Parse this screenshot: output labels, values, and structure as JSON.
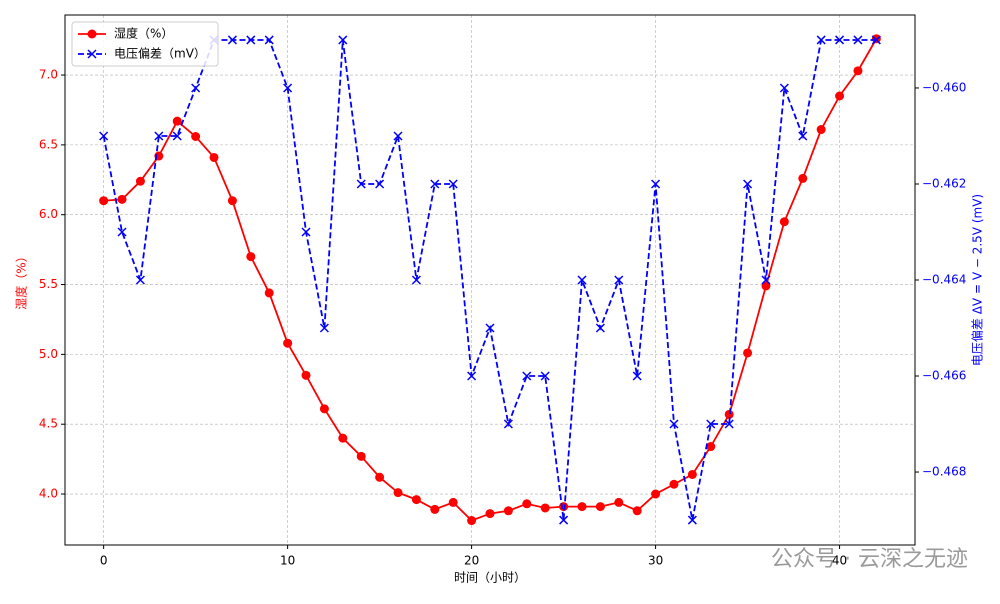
{
  "chart_data": {
    "type": "line",
    "x": [
      0,
      1,
      2,
      3,
      4,
      5,
      6,
      7,
      8,
      9,
      10,
      11,
      12,
      13,
      14,
      15,
      16,
      17,
      18,
      19,
      20,
      21,
      22,
      23,
      24,
      25,
      26,
      27,
      28,
      29,
      30,
      31,
      32,
      33,
      34,
      35,
      36,
      37,
      38,
      39,
      40,
      41,
      42
    ],
    "series": [
      {
        "name": "湿度（%）",
        "color": "#ff0000",
        "marker": "circle",
        "dash": "solid",
        "values": [
          6.1,
          6.11,
          6.24,
          6.42,
          6.67,
          6.56,
          6.41,
          6.1,
          5.7,
          5.44,
          5.08,
          4.85,
          4.61,
          4.4,
          4.27,
          4.12,
          4.01,
          3.96,
          3.89,
          3.94,
          3.81,
          3.86,
          3.88,
          3.93,
          3.9,
          3.91,
          3.91,
          3.91,
          3.94,
          3.88,
          4.0,
          4.07,
          4.14,
          4.34,
          4.57,
          5.01,
          5.49,
          5.95,
          6.26,
          6.61,
          6.85,
          7.03,
          7.26
        ]
      },
      {
        "name": "电压偏差（mV）",
        "color": "#0000ff",
        "marker": "x",
        "dash": "dashed",
        "axis": "y2",
        "values": [
          -0.461,
          -0.463,
          -0.464,
          -0.461,
          -0.461,
          -0.46,
          -0.459,
          -0.459,
          -0.459,
          -0.459,
          -0.46,
          -0.463,
          -0.465,
          -0.459,
          -0.462,
          -0.462,
          -0.461,
          -0.464,
          -0.462,
          -0.462,
          -0.466,
          -0.465,
          -0.467,
          -0.466,
          -0.466,
          -0.469,
          -0.464,
          -0.465,
          -0.464,
          -0.466,
          -0.462,
          -0.467,
          -0.469,
          -0.467,
          -0.467,
          -0.462,
          -0.464,
          -0.46,
          -0.461,
          -0.459,
          -0.459,
          -0.459,
          -0.459
        ]
      }
    ],
    "xlabel": "时间（小时）",
    "ylabel": "湿度（%）",
    "y2label": "电压偏差 ΔV = V − 2.5V (mV)",
    "xlim": [
      -2.1,
      44.1
    ],
    "xticks": [
      0,
      10,
      20,
      30,
      40
    ],
    "ylim": [
      3.635,
      7.43
    ],
    "yticks": [
      {
        "value": 4.0,
        "label": "4.0"
      },
      4.5,
      {
        "value": 5.0,
        "label": "5.0"
      },
      5.5,
      {
        "value": 6.0,
        "label": "6.0"
      },
      6.5,
      {
        "value": 7.0,
        "label": "7.0"
      }
    ],
    "y2lim": [
      -0.46952,
      -0.45848
    ],
    "y2ticks": [
      {
        "value": -0.468,
        "label": "−0.468"
      },
      {
        "value": -0.466,
        "label": "−0.466"
      },
      {
        "value": -0.464,
        "label": "−0.464"
      },
      {
        "value": -0.462,
        "label": "−0.462"
      },
      {
        "value": -0.46,
        "label": "−0.460"
      }
    ],
    "grid": true,
    "legend": "upper left",
    "watermark": "公众号 · 云深之无迹"
  }
}
